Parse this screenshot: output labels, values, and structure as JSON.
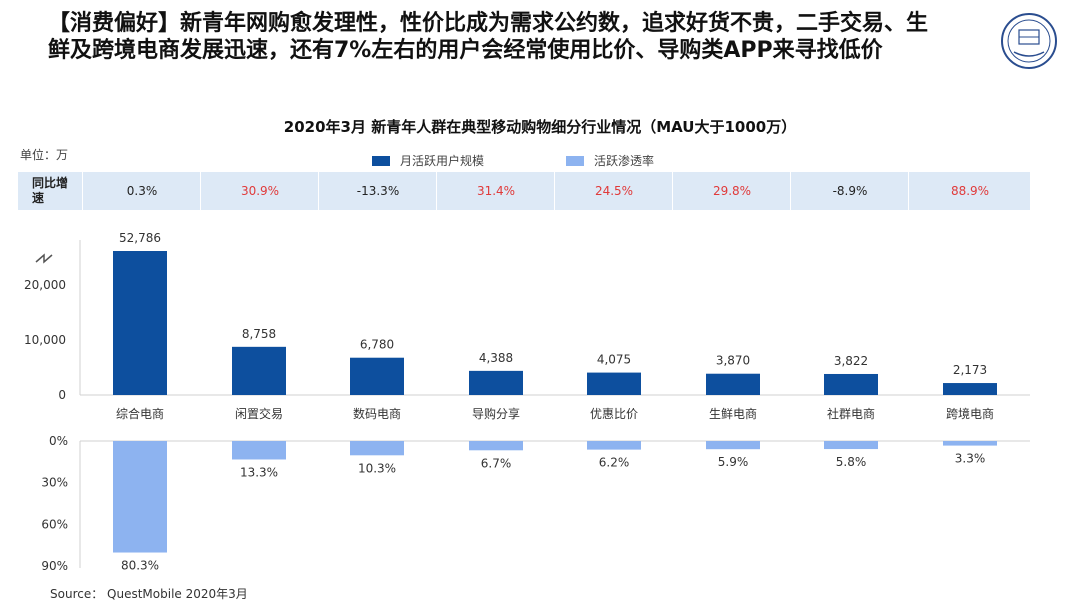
{
  "headline": "【消费偏好】新青年网购愈发理性，性价比成为需求公约数，追求好货不贵，二手交易、生鲜及跨境电商发展迅速，还有7%左右的用户会经常使用比价、导购类APP来寻找低价",
  "logo": {
    "label": "北京师范大学",
    "icon": "university-seal-icon"
  },
  "unit_label": "单位：万",
  "growth_label": "同比增速",
  "source": "Source：  QuestMobile 2020年3月",
  "chart_data": {
    "type": "bar",
    "title": "2020年3月 新青年人群在典型移动购物细分行业情况（MAU大于1000万）",
    "categories": [
      "综合电商",
      "闲置交易",
      "数码电商",
      "导购分享",
      "优惠比价",
      "生鲜电商",
      "社群电商",
      "跨境电商"
    ],
    "series": [
      {
        "name": "月活跃用户规模",
        "values": [
          52786,
          8758,
          6780,
          4388,
          4075,
          3870,
          3822,
          2173
        ],
        "labels": [
          "52,786",
          "8,758",
          "6,780",
          "4,388",
          "4,075",
          "3,870",
          "3,822",
          "2,173"
        ],
        "color": "#0d4f9e"
      },
      {
        "name": "活跃渗透率",
        "values": [
          80.3,
          13.3,
          10.3,
          6.7,
          6.2,
          5.9,
          5.8,
          3.3
        ],
        "labels": [
          "80.3%",
          "13.3%",
          "10.3%",
          "6.7%",
          "6.2%",
          "5.9%",
          "5.8%",
          "3.3%"
        ],
        "color": "#8db3f0"
      }
    ],
    "growth": [
      "0.3%",
      "30.9%",
      "-13.3%",
      "31.4%",
      "24.5%",
      "29.8%",
      "-8.9%",
      "88.9%"
    ],
    "upper_axis": {
      "ticks": [
        0,
        10000,
        20000
      ],
      "tick_labels": [
        "0",
        "10,000",
        "20,000"
      ],
      "break": true
    },
    "lower_axis": {
      "ticks": [
        0,
        30,
        60,
        90
      ],
      "tick_labels": [
        "0%",
        "30%",
        "60%",
        "90%"
      ],
      "range": [
        0,
        90
      ]
    },
    "legend_position": "top",
    "grid": false
  }
}
